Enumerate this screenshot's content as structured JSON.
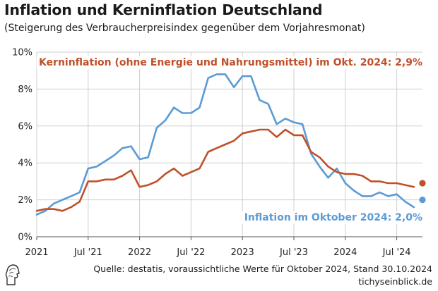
{
  "header": {
    "title": "Inflation und Kerninflation Deutschland",
    "subtitle": "(Steigerung des Verbraucherpreisindex gegenüber dem Vorjahresmonat)"
  },
  "footer": {
    "source": "Quelle: destatis, voraussichtliche Werte für Oktober 2024, Stand 30.10.2024",
    "site": "tichyseinblick.de"
  },
  "chart_data": {
    "type": "line",
    "x": [
      "2021-01",
      "2021-02",
      "2021-03",
      "2021-04",
      "2021-05",
      "2021-06",
      "2021-07",
      "2021-08",
      "2021-09",
      "2021-10",
      "2021-11",
      "2021-12",
      "2022-01",
      "2022-02",
      "2022-03",
      "2022-04",
      "2022-05",
      "2022-06",
      "2022-07",
      "2022-08",
      "2022-09",
      "2022-10",
      "2022-11",
      "2022-12",
      "2023-01",
      "2023-02",
      "2023-03",
      "2023-04",
      "2023-05",
      "2023-06",
      "2023-07",
      "2023-08",
      "2023-09",
      "2023-10",
      "2023-11",
      "2023-12",
      "2024-01",
      "2024-02",
      "2024-03",
      "2024-04",
      "2024-05",
      "2024-06",
      "2024-07",
      "2024-08",
      "2024-09",
      "2024-10"
    ],
    "series": [
      {
        "label": "Inflation im Oktober 2024: 2,0%",
        "color": "#5b9bd5",
        "values": [
          1.2,
          1.4,
          1.8,
          2.0,
          2.2,
          2.4,
          3.7,
          3.8,
          4.1,
          4.4,
          4.8,
          4.9,
          4.2,
          4.3,
          5.9,
          6.3,
          7.0,
          6.7,
          6.7,
          7.0,
          8.6,
          8.8,
          8.8,
          8.1,
          8.7,
          8.7,
          7.4,
          7.2,
          6.1,
          6.4,
          6.2,
          6.1,
          4.5,
          3.8,
          3.2,
          3.7,
          2.9,
          2.5,
          2.2,
          2.2,
          2.4,
          2.2,
          2.3,
          1.9,
          1.6,
          2.0
        ]
      },
      {
        "label": "Kerninflation (ohne Energie und Nahrungsmittel) im Okt. 2024: 2,9%",
        "color": "#c0502a",
        "values": [
          1.4,
          1.5,
          1.5,
          1.4,
          1.6,
          1.9,
          3.0,
          3.0,
          3.1,
          3.1,
          3.3,
          3.6,
          2.7,
          2.8,
          3.0,
          3.4,
          3.7,
          3.3,
          3.5,
          3.7,
          4.6,
          4.8,
          5.0,
          5.2,
          5.6,
          5.7,
          5.8,
          5.8,
          5.4,
          5.8,
          5.5,
          5.5,
          4.6,
          4.3,
          3.8,
          3.5,
          3.4,
          3.4,
          3.3,
          3.0,
          3.0,
          2.9,
          2.9,
          2.8,
          2.7,
          2.9
        ]
      }
    ],
    "xticks": [
      "2021",
      "Jul '21",
      "2022",
      "Jul '22",
      "2023",
      "Jul '23",
      "2024",
      "Jul '24"
    ],
    "yticks": [
      "0%",
      "2%",
      "4%",
      "6%",
      "8%",
      "10%"
    ],
    "ylim": [
      0,
      10
    ],
    "grid": true
  }
}
